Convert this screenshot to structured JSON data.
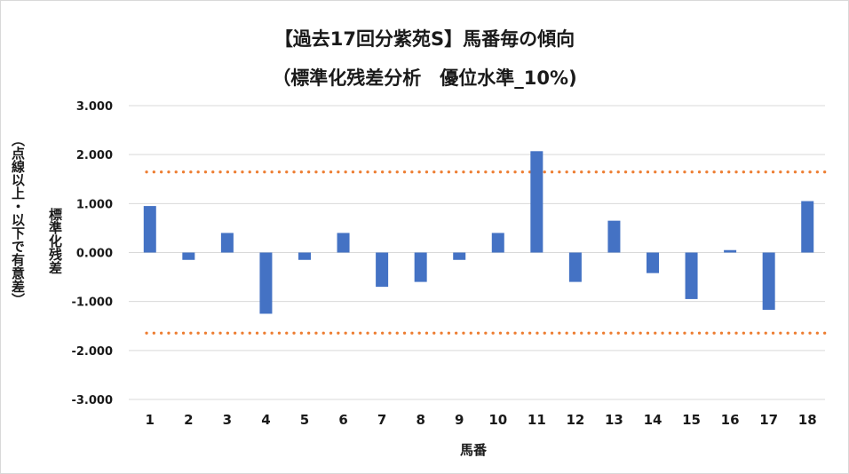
{
  "chart_data": {
    "type": "bar",
    "title": "【過去17回分紫苑S】馬番毎の傾向",
    "subtitle": "（標準化残差分析　優位水準_10%)",
    "xlabel": "馬番",
    "ylabel": "標準化残差",
    "ylabel_note": "（点線以上・以下で有意差）",
    "categories": [
      "1",
      "2",
      "3",
      "4",
      "5",
      "6",
      "7",
      "8",
      "9",
      "10",
      "11",
      "12",
      "13",
      "14",
      "15",
      "16",
      "17",
      "18"
    ],
    "values": [
      0.95,
      -0.15,
      0.4,
      -1.25,
      -0.15,
      0.4,
      -0.7,
      -0.6,
      -0.15,
      0.4,
      2.07,
      -0.6,
      0.65,
      -0.42,
      -0.95,
      0.05,
      -1.17,
      1.05
    ],
    "ylim": [
      -3,
      3
    ],
    "yticks": [
      3,
      2,
      1,
      0,
      -1,
      -2,
      -3
    ],
    "ytick_labels": [
      "3.000",
      "2.000",
      "1.000",
      "0.000",
      "-1.000",
      "-2.000",
      "-3.000"
    ],
    "threshold_upper": 1.645,
    "threshold_lower": -1.645,
    "grid": true,
    "colors": {
      "bar": "#4472c4",
      "threshold": "#ed7d31",
      "grid": "#d9d9d9"
    }
  }
}
